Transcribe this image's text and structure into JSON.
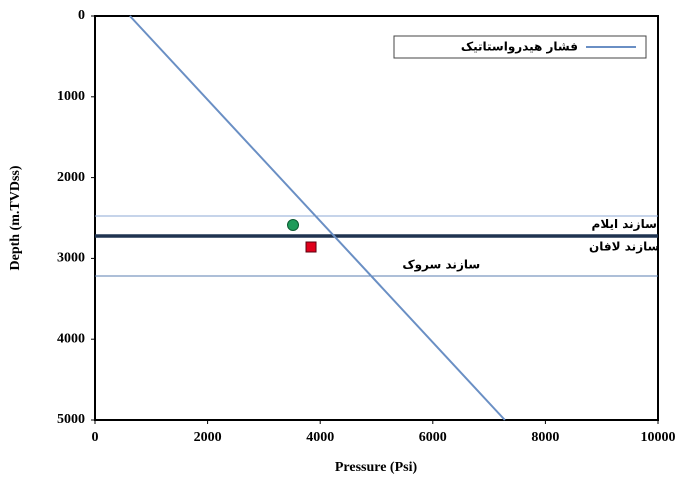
{
  "chart_data": {
    "type": "line",
    "xlabel": "Pressure (Psi)",
    "ylabel": "Depth (m.TVDss)",
    "xlim": [
      0,
      10000
    ],
    "xticks": [
      0,
      2000,
      4000,
      6000,
      8000,
      10000
    ],
    "ylim": [
      5000,
      0
    ],
    "yticks": [
      0,
      1000,
      2000,
      3000,
      4000,
      5000
    ],
    "series": [
      {
        "name": "فشار هیدرواستاتیک",
        "color": "#6a8fc4",
        "x": [
          620,
          7280
        ],
        "y": [
          0,
          5000
        ]
      }
    ],
    "points": [
      {
        "shape": "circle",
        "color": "#1e9b5a",
        "x": 3517,
        "y": 2587
      },
      {
        "shape": "square",
        "color": "#e0001b",
        "x": 3837,
        "y": 2859
      }
    ],
    "hlines": [
      {
        "y": 2475,
        "weight": "normal",
        "color": "#8ea9d6"
      },
      {
        "y": 2723,
        "weight": "bold",
        "color": "#1f3350"
      },
      {
        "y": 3218,
        "weight": "normal",
        "color": "#5b7fb0"
      }
    ],
    "annotations": [
      {
        "text": "سازند ایلام",
        "x": 9400,
        "y": 2580
      },
      {
        "text": "سازند لافان",
        "x": 9400,
        "y": 2860
      },
      {
        "text": "سازند سروک",
        "x": 6150,
        "y": 3080
      }
    ],
    "legend": "upper right"
  }
}
